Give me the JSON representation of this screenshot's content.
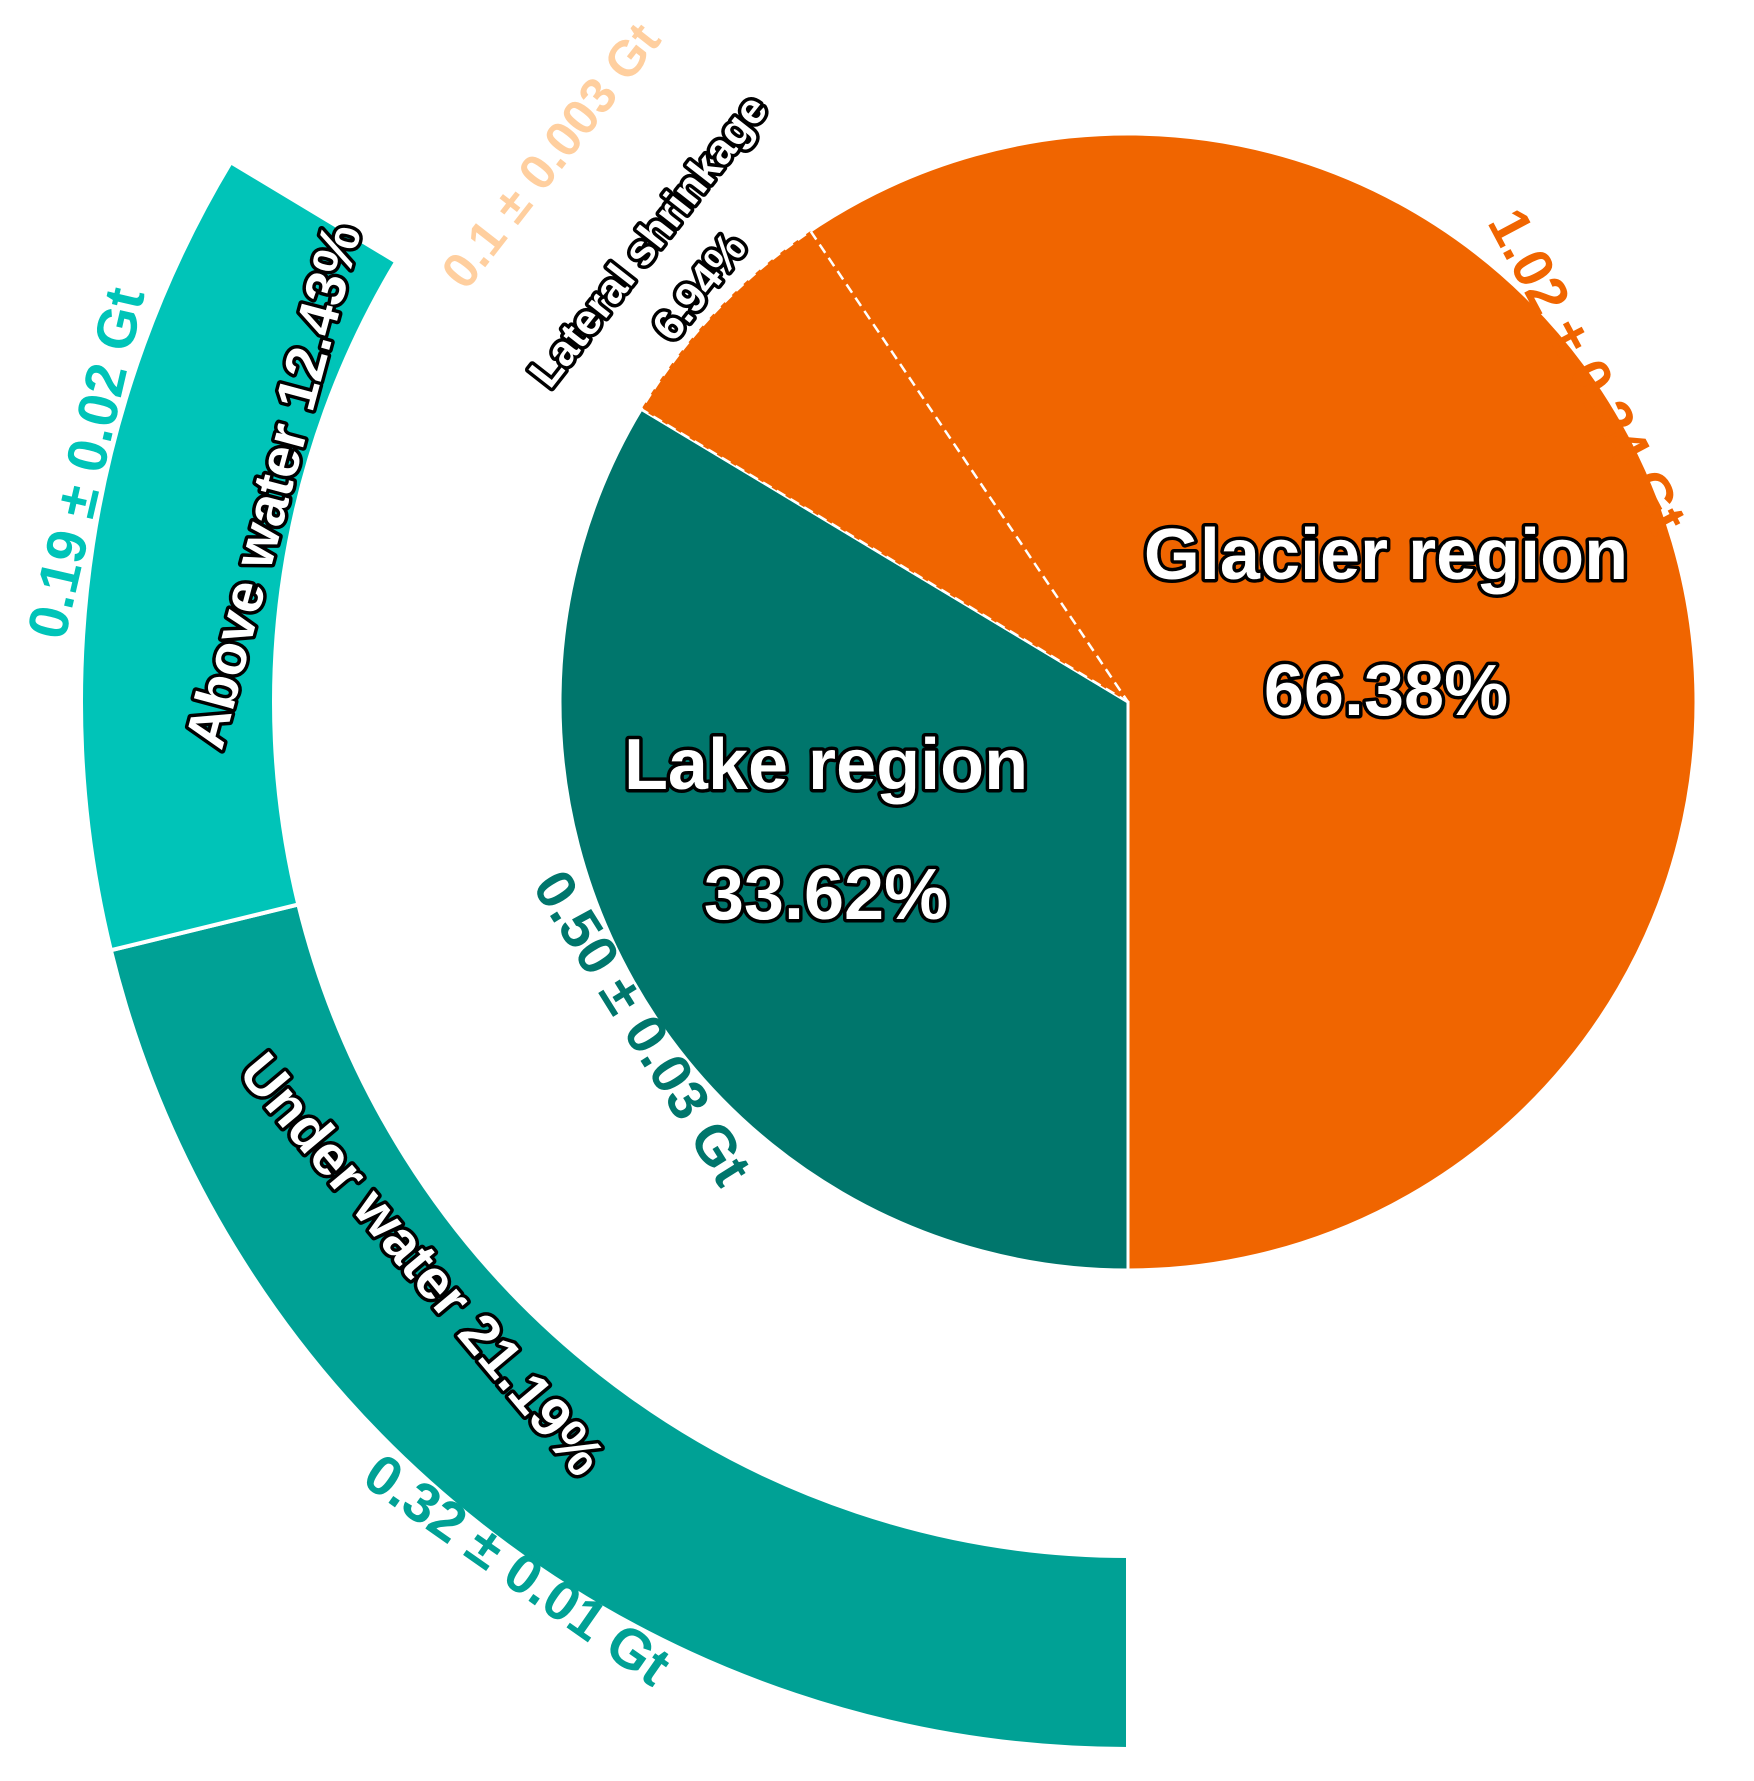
{
  "chart_data": {
    "type": "pie",
    "categories": [
      "Lake region",
      "Glacier region"
    ],
    "values": [
      33.62,
      66.38
    ],
    "value_labels": [
      "33.62%",
      "66.38%"
    ],
    "colors": [
      "#00766c",
      "#f06500"
    ],
    "annotations": [
      "0.50 ± 0.03 Gt",
      "1.02 ± 0.34 Gt"
    ],
    "annotation_colors": [
      "#00766c",
      "#f06500"
    ],
    "sub_slice": {
      "category": "Lateral shrinkage",
      "value": 6.94,
      "value_label": "6.94%",
      "annotation": "0.1 ± 0.003 Gt",
      "color": "#f06500",
      "annotation_color": "#ffcf9f"
    },
    "ring": {
      "categories": [
        "Under water",
        "Above water"
      ],
      "values": [
        21.19,
        12.43
      ],
      "value_labels": [
        "21.19%",
        "12.43%"
      ],
      "colors": [
        "#00a195",
        "#00c4b8"
      ],
      "annotations": [
        "0.32 ± 0.01 Gt",
        "0.19 ± 0.02 Gt"
      ],
      "annotation_colors": [
        "#00a195",
        "#00c4b8"
      ]
    }
  }
}
